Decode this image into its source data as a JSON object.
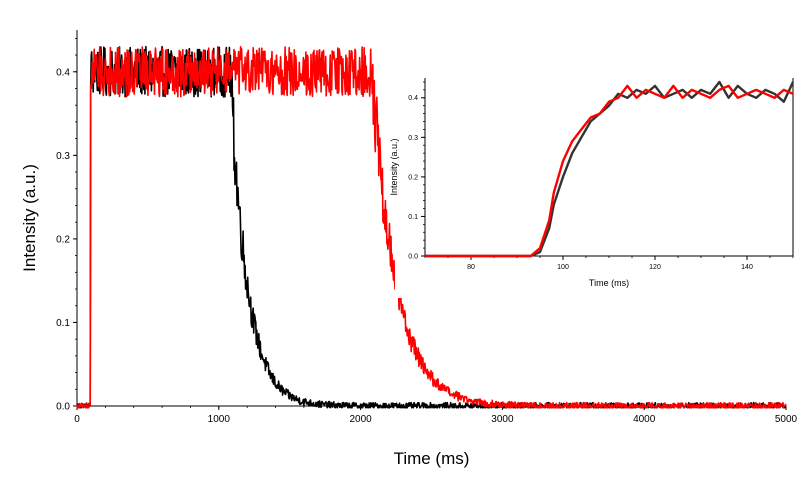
{
  "chart_data": [
    {
      "type": "line",
      "xlabel": "Time (ms)",
      "ylabel": "Intensity (a.u.)",
      "xlim": [
        0,
        5000
      ],
      "ylim": [
        0,
        0.45
      ],
      "x_ticks": [
        0,
        1000,
        2000,
        3000,
        4000,
        5000
      ],
      "y_ticks": [
        0.0,
        0.1,
        0.2,
        0.3,
        0.4
      ],
      "y_tick_labels": [
        "0.0",
        "0.1",
        "0.2",
        "0.3",
        "0.4"
      ],
      "grid": false,
      "series": [
        {
          "color": "#000000",
          "baseline": 0.0,
          "rise_time": 95,
          "plateau": 0.4,
          "noise": 0.03,
          "decay_start": 1080,
          "decay_tau": 120,
          "points": [
            [
              0,
              0
            ],
            [
              95,
              0
            ],
            [
              100,
              0.4
            ],
            [
              500,
              0.4
            ],
            [
              1080,
              0.39
            ],
            [
              1100,
              0.32
            ],
            [
              1150,
              0.17
            ],
            [
              1200,
              0.07
            ],
            [
              1300,
              0.035
            ],
            [
              1500,
              0.012
            ],
            [
              2000,
              0.004
            ],
            [
              2500,
              0.002
            ],
            [
              3000,
              0.001
            ],
            [
              5000,
              0.0
            ]
          ]
        },
        {
          "color": "#ff0000",
          "baseline": 0.0,
          "rise_time": 95,
          "plateau": 0.4,
          "noise": 0.03,
          "decay_start": 2080,
          "decay_tau": 170,
          "points": [
            [
              0,
              0
            ],
            [
              95,
              0
            ],
            [
              100,
              0.4
            ],
            [
              1000,
              0.4
            ],
            [
              2080,
              0.39
            ],
            [
              2100,
              0.33
            ],
            [
              2150,
              0.2
            ],
            [
              2250,
              0.09
            ],
            [
              2400,
              0.04
            ],
            [
              2700,
              0.018
            ],
            [
              3000,
              0.01
            ],
            [
              4000,
              0.004
            ],
            [
              5000,
              0.002
            ]
          ]
        }
      ]
    },
    {
      "type": "line",
      "inset": true,
      "xlabel": "Time (ms)",
      "ylabel": "Intensity (a.u.)",
      "xlim": [
        70,
        150
      ],
      "ylim": [
        0,
        0.45
      ],
      "x_ticks": [
        80,
        100,
        120,
        140
      ],
      "y_ticks": [
        0.0,
        0.1,
        0.2,
        0.3,
        0.4
      ],
      "y_tick_labels": [
        "0.0",
        "0.1",
        "0.2",
        "0.3",
        "0.4"
      ],
      "grid": false,
      "series": [
        {
          "color": "#333333",
          "x": [
            70,
            75,
            80,
            85,
            90,
            93,
            95,
            97,
            98,
            100,
            102,
            104,
            106,
            108,
            110,
            112,
            114,
            116,
            118,
            120,
            122,
            124,
            126,
            128,
            130,
            132,
            134,
            136,
            138,
            140,
            142,
            144,
            146,
            148,
            150
          ],
          "values": [
            0.0,
            0.0,
            0.0,
            0.0,
            0.0,
            0.0,
            0.01,
            0.07,
            0.13,
            0.2,
            0.26,
            0.3,
            0.34,
            0.36,
            0.38,
            0.41,
            0.4,
            0.42,
            0.41,
            0.43,
            0.4,
            0.41,
            0.42,
            0.4,
            0.42,
            0.41,
            0.44,
            0.4,
            0.43,
            0.41,
            0.4,
            0.42,
            0.41,
            0.39,
            0.44
          ]
        },
        {
          "color": "#ff0000",
          "x": [
            70,
            75,
            80,
            85,
            90,
            93,
            95,
            97,
            98,
            100,
            102,
            104,
            106,
            108,
            110,
            112,
            114,
            116,
            118,
            120,
            122,
            124,
            126,
            128,
            130,
            132,
            134,
            136,
            138,
            140,
            142,
            144,
            146,
            148,
            150
          ],
          "values": [
            0.0,
            0.0,
            0.0,
            0.0,
            0.0,
            0.0,
            0.02,
            0.09,
            0.16,
            0.24,
            0.29,
            0.32,
            0.35,
            0.36,
            0.39,
            0.4,
            0.43,
            0.4,
            0.42,
            0.41,
            0.4,
            0.43,
            0.4,
            0.42,
            0.41,
            0.4,
            0.42,
            0.43,
            0.4,
            0.41,
            0.42,
            0.41,
            0.4,
            0.42,
            0.41
          ]
        }
      ]
    }
  ]
}
